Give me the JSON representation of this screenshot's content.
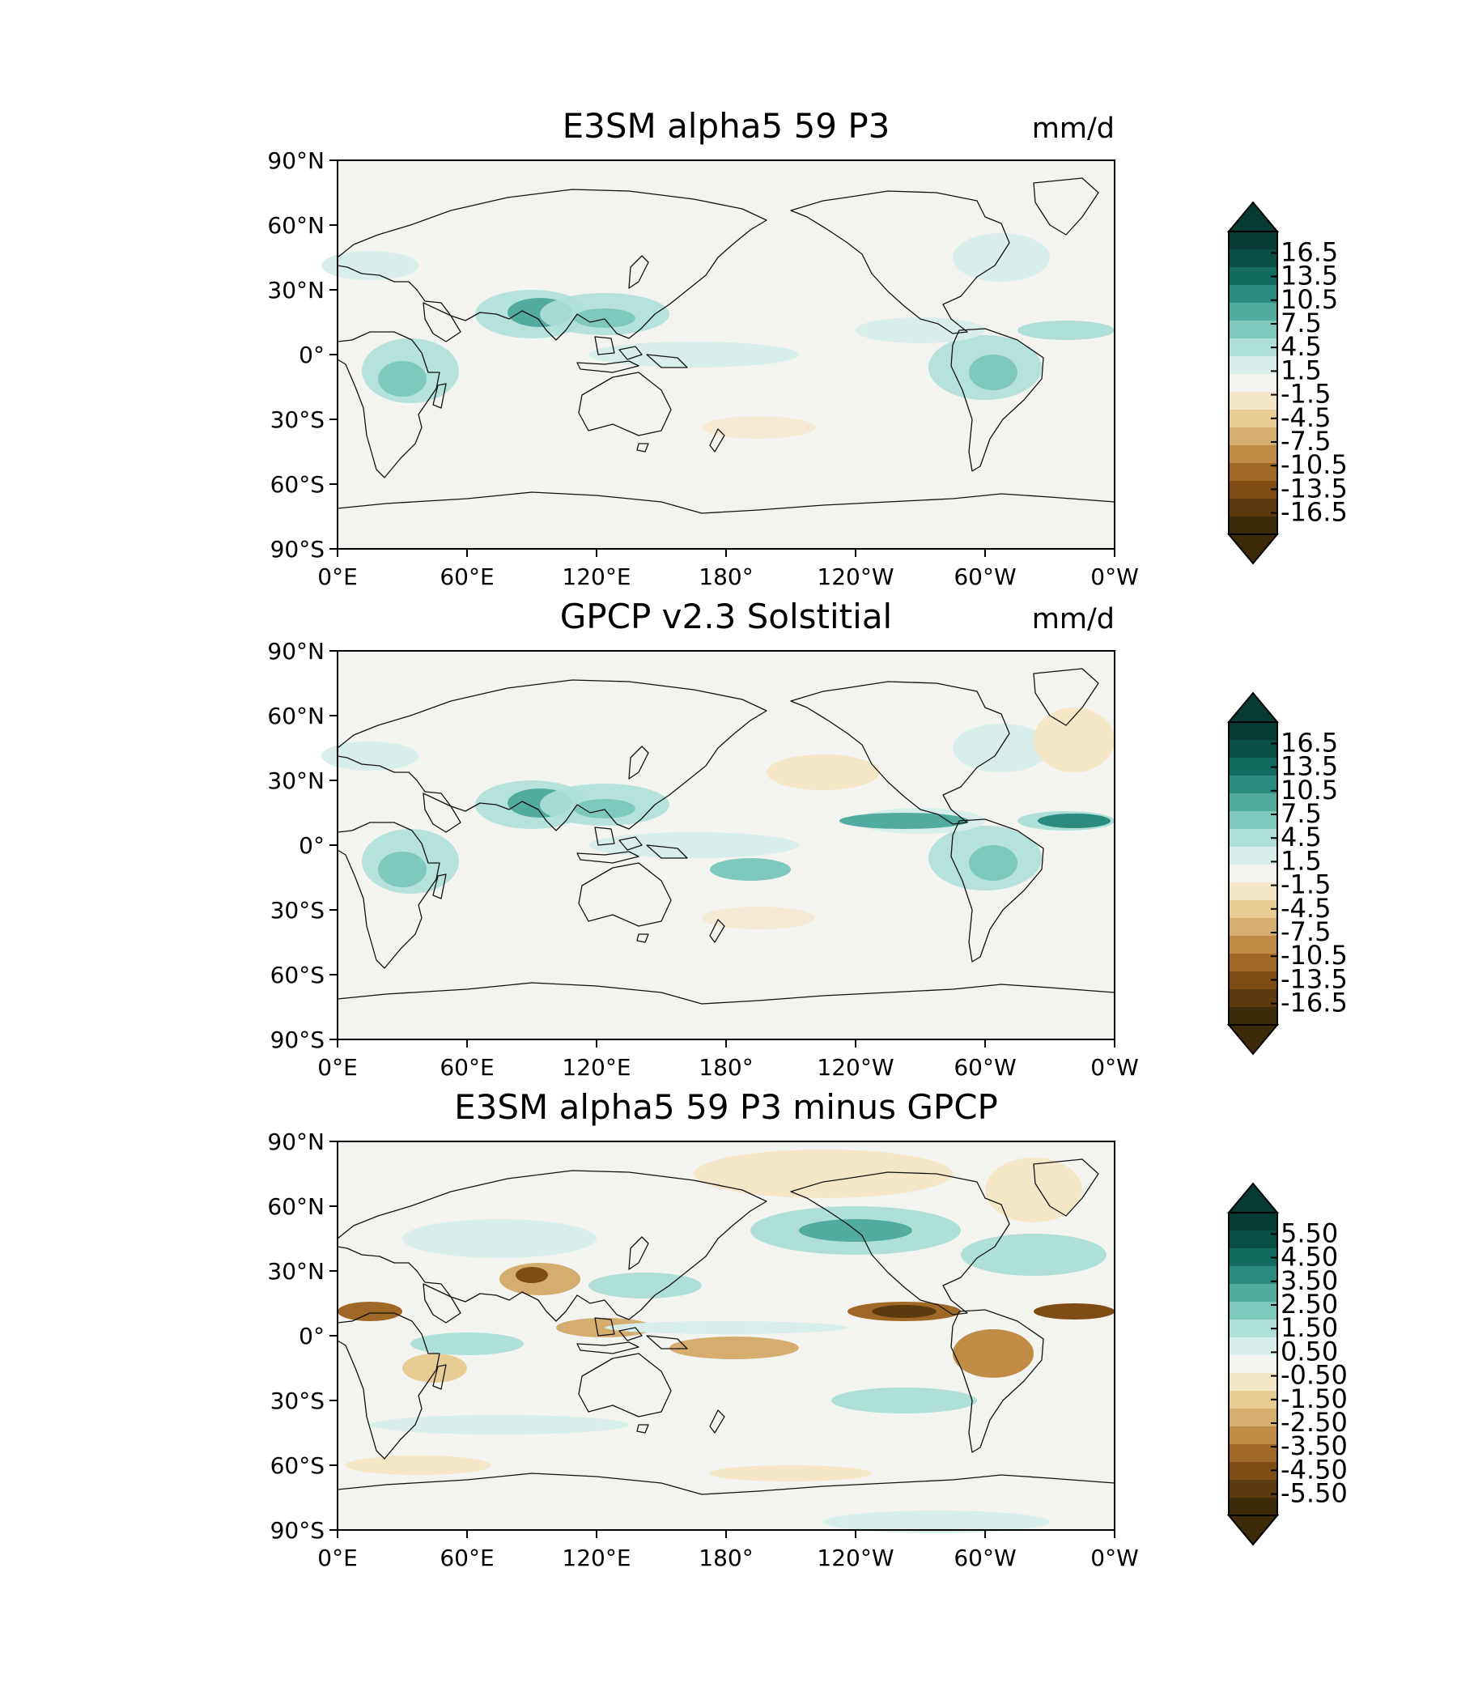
{
  "figure": {
    "panels": [
      {
        "id": "panel-model",
        "title": "E3SM alpha5 59 P3",
        "units": "mm/d",
        "colorbar": {
          "tick_labels": [
            "16.5",
            "13.5",
            "10.5",
            "7.5",
            "4.5",
            "1.5",
            "-1.5",
            "-4.5",
            "-7.5",
            "-10.5",
            "-13.5",
            "-16.5"
          ],
          "levels": [
            16.5,
            13.5,
            10.5,
            7.5,
            4.5,
            1.5,
            -1.5,
            -4.5,
            -7.5,
            -10.5,
            -13.5,
            -16.5
          ]
        }
      },
      {
        "id": "panel-obs",
        "title": "GPCP v2.3 Solstitial",
        "units": "mm/d",
        "colorbar": {
          "tick_labels": [
            "16.5",
            "13.5",
            "10.5",
            "7.5",
            "4.5",
            "1.5",
            "-1.5",
            "-4.5",
            "-7.5",
            "-10.5",
            "-13.5",
            "-16.5"
          ],
          "levels": [
            16.5,
            13.5,
            10.5,
            7.5,
            4.5,
            1.5,
            -1.5,
            -4.5,
            -7.5,
            -10.5,
            -13.5,
            -16.5
          ]
        }
      },
      {
        "id": "panel-diff",
        "title": "E3SM alpha5 59 P3 minus GPCP",
        "units": "",
        "colorbar": {
          "tick_labels": [
            "5.50",
            "4.50",
            "3.50",
            "2.50",
            "1.50",
            "0.50",
            "-0.50",
            "-1.50",
            "-2.50",
            "-3.50",
            "-4.50",
            "-5.50"
          ],
          "levels": [
            5.5,
            4.5,
            3.5,
            2.5,
            1.5,
            0.5,
            -0.5,
            -1.5,
            -2.5,
            -3.5,
            -4.5,
            -5.5
          ]
        }
      }
    ],
    "lat_ticks": [
      "90°N",
      "60°N",
      "30°N",
      "0°",
      "30°S",
      "60°S",
      "90°S"
    ],
    "lon_ticks": [
      "0°E",
      "60°E",
      "120°E",
      "180°",
      "120°W",
      "60°W",
      "0°W"
    ],
    "colormap": [
      "#3d2a08",
      "#5d3a0d",
      "#7f4d14",
      "#a06826",
      "#bf8b45",
      "#d5ae6f",
      "#e7cd94",
      "#f4e6c6",
      "#f3f3f0",
      "#d7eeea",
      "#aee0d8",
      "#7fc8bc",
      "#51ab9f",
      "#2b8b80",
      "#136c62",
      "#0a4f46",
      "#053b33"
    ]
  }
}
